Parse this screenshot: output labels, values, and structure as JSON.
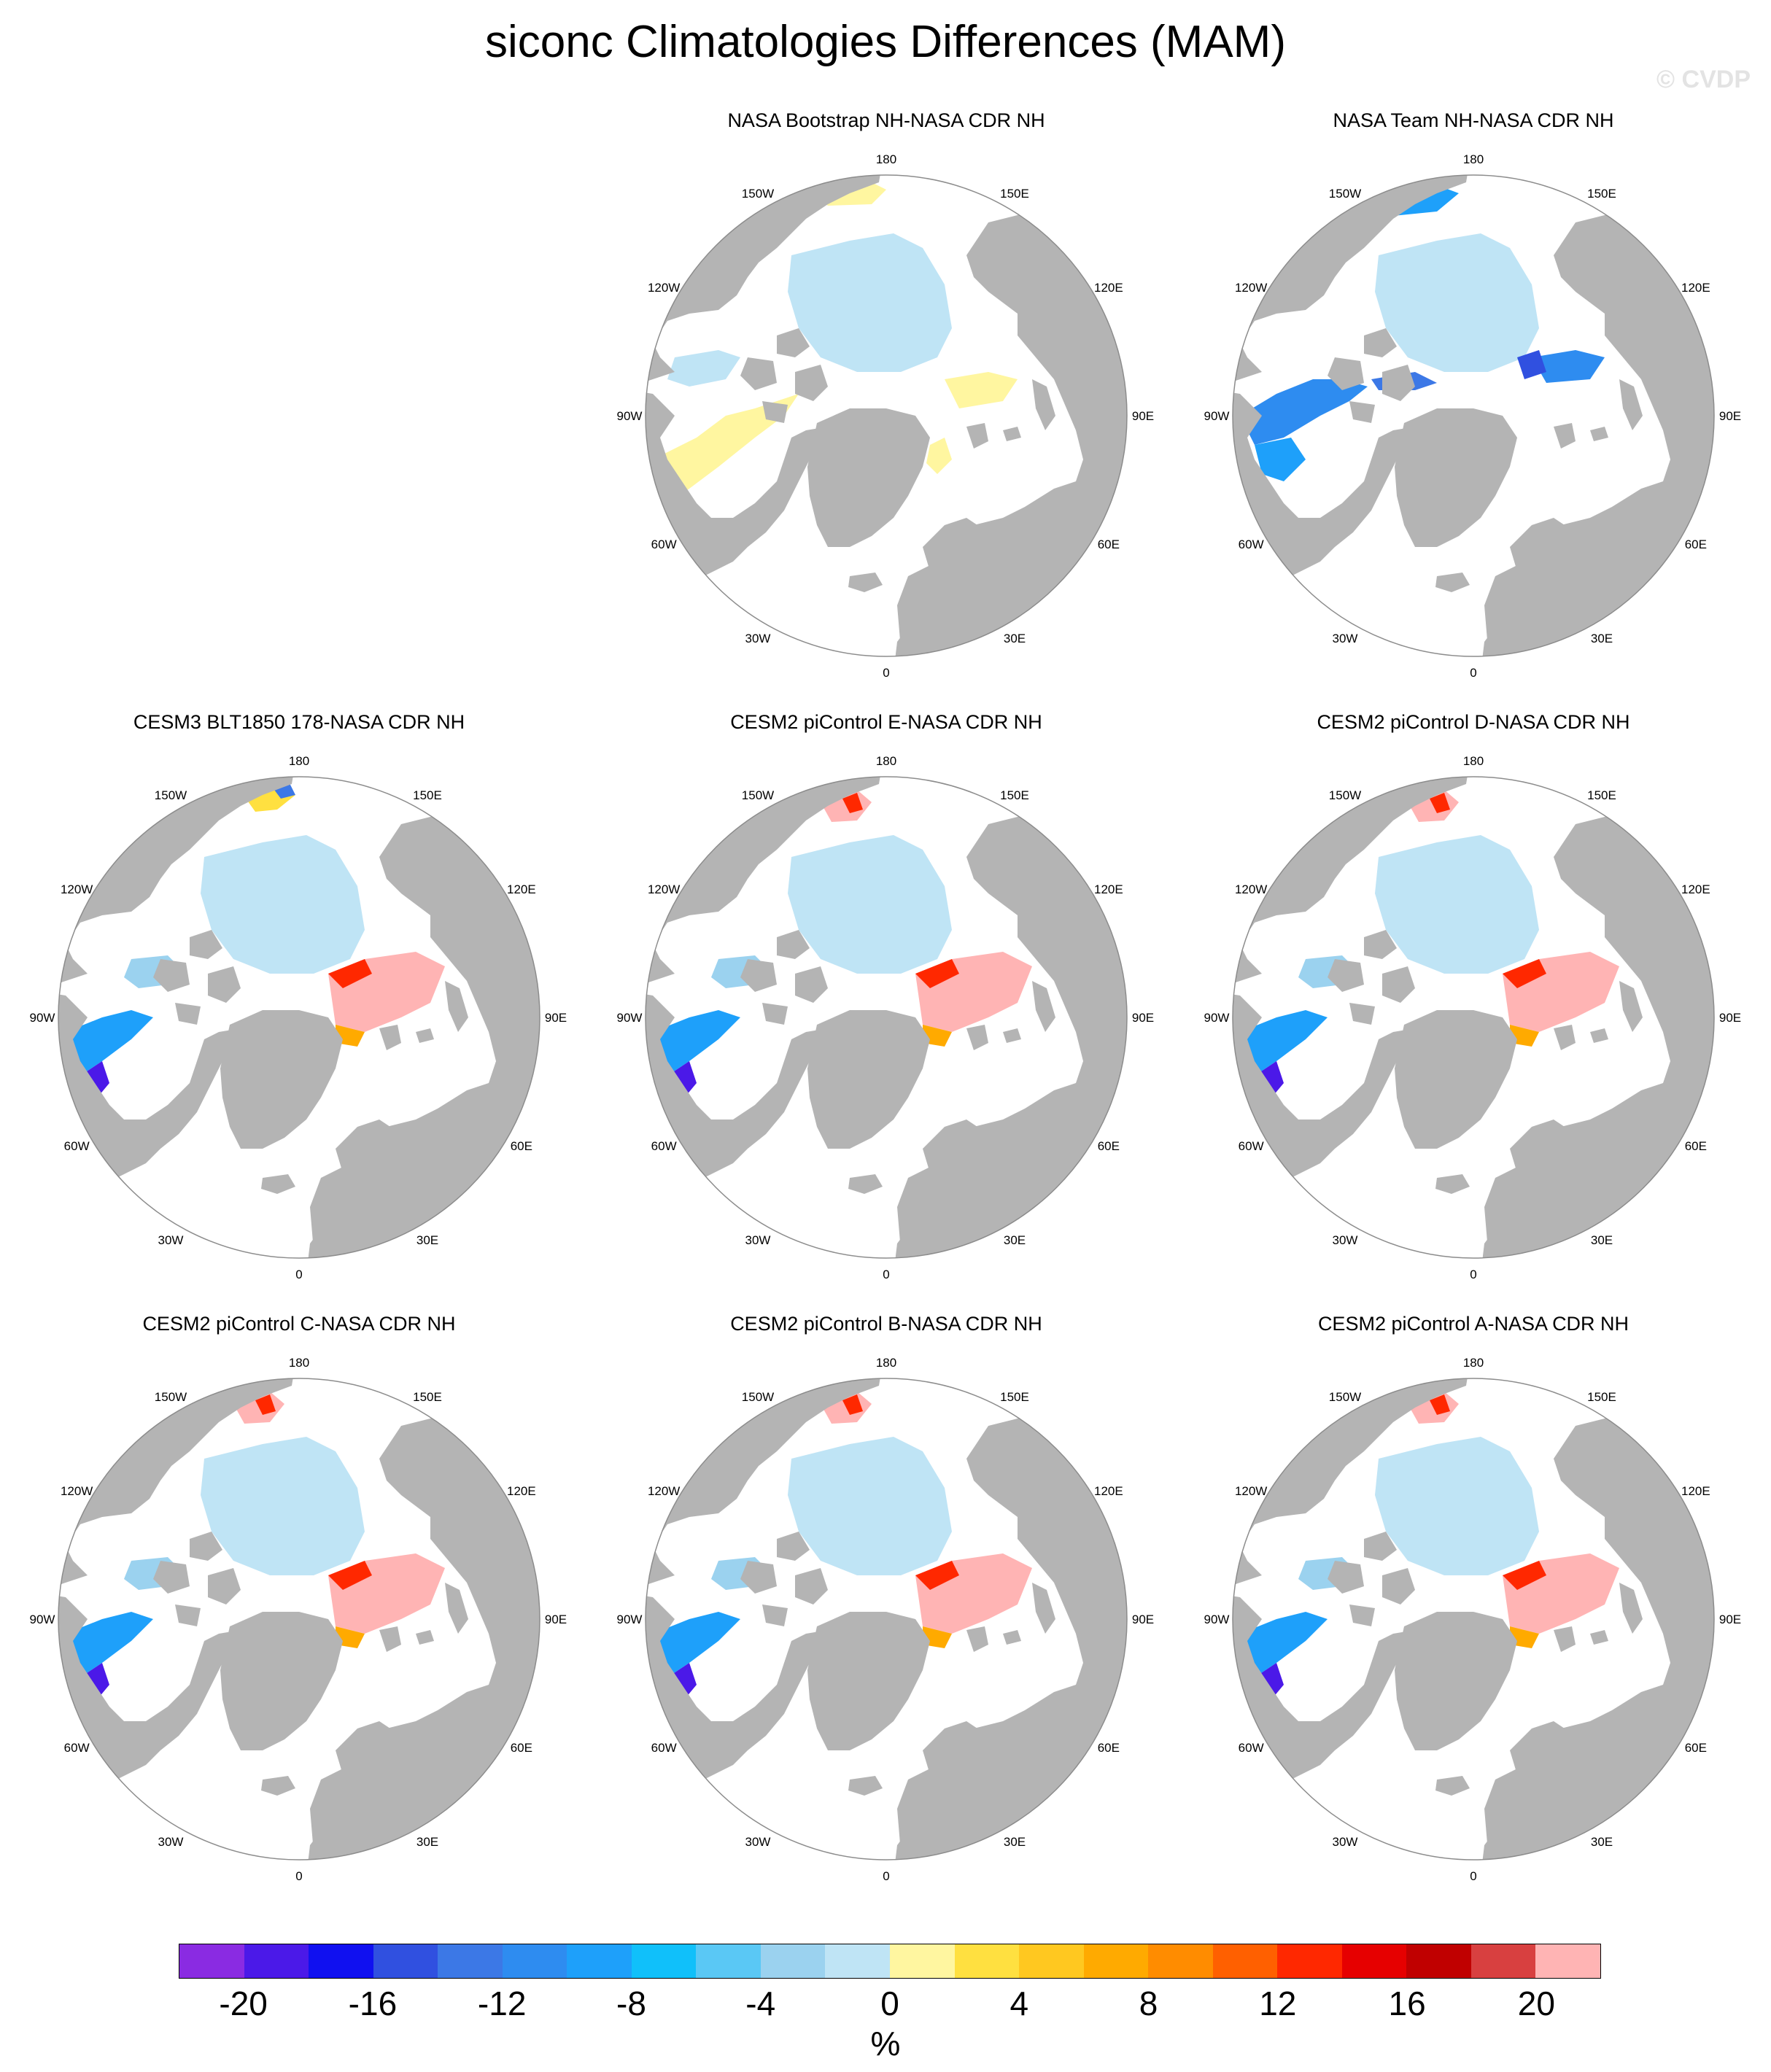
{
  "title": "siconc Climatologies Differences (MAM)",
  "watermark": "© CVDP",
  "lon_labels": [
    "180",
    "150E",
    "120E",
    "90E",
    "60E",
    "30E",
    "0",
    "30W",
    "60W",
    "90W",
    "120W",
    "150W"
  ],
  "panels": [
    {
      "title": "NASA Bootstrap NH-NASA CDR NH",
      "pattern": "bootstrap"
    },
    {
      "title": "NASA Team NH-NASA CDR NH",
      "pattern": "team"
    },
    {
      "title": "CESM3 BLT1850 178-NASA CDR NH",
      "pattern": "cesm3"
    },
    {
      "title": "CESM2 piControl E-NASA CDR NH",
      "pattern": "cesm2"
    },
    {
      "title": "CESM2 piControl D-NASA CDR NH",
      "pattern": "cesm2"
    },
    {
      "title": "CESM2 piControl C-NASA CDR NH",
      "pattern": "cesm2"
    },
    {
      "title": "CESM2 piControl B-NASA CDR NH",
      "pattern": "cesm2"
    },
    {
      "title": "CESM2 piControl A-NASA CDR NH",
      "pattern": "cesm2"
    }
  ],
  "colorbar": {
    "colors": [
      "#8a2be2",
      "#4b19e8",
      "#1010f0",
      "#3050e0",
      "#3c78e6",
      "#2e8cf0",
      "#1ea0fa",
      "#10c0fa",
      "#5ac8f5",
      "#9bd2ef",
      "#bfe4f5",
      "#fff6a0",
      "#ffe040",
      "#ffc820",
      "#ffaa00",
      "#ff8c00",
      "#ff6000",
      "#ff2800",
      "#e60000",
      "#c00000",
      "#d84040",
      "#ffb4b4"
    ],
    "ticks": [
      "-20",
      "-16",
      "-12",
      "-8",
      "-4",
      "0",
      "4",
      "8",
      "12",
      "16",
      "20"
    ],
    "units": "%"
  },
  "colors": {
    "land": "#b4b4b4",
    "ocean": "#ffffff",
    "ice_zero": "#bfe4f5",
    "outline": "#8c8c8c"
  }
}
